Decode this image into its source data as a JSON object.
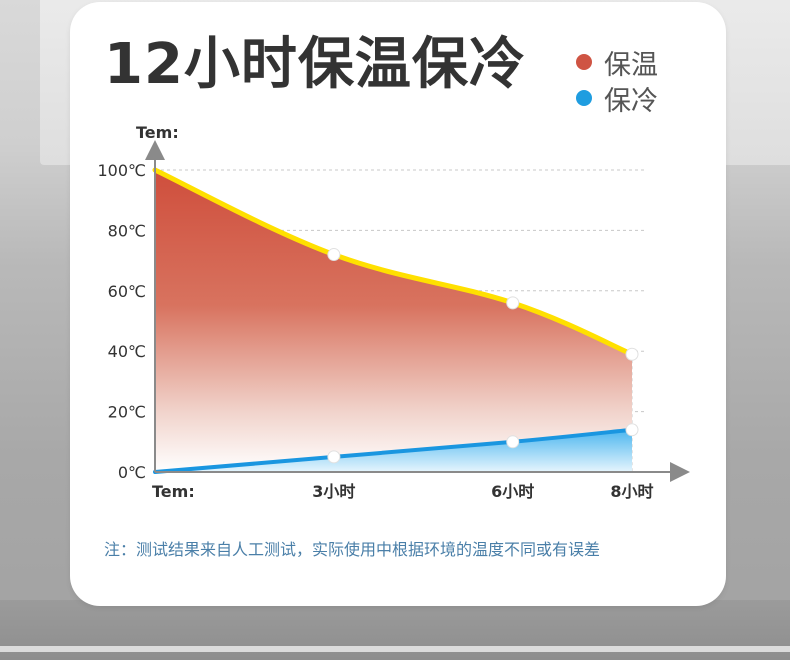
{
  "title": "12小时保温保冷",
  "legend": [
    {
      "label": "保温",
      "color": "#cf5443"
    },
    {
      "label": "保冷",
      "color": "#1f9de0"
    }
  ],
  "note": "注：测试结果来自人工测试，实际使用中根据环境的温度不同或有误差",
  "chart_data": {
    "type": "area",
    "ylabel": "Tem:",
    "x_origin_label": "Tem:",
    "categories": [
      "Tem:",
      "3小时",
      "6小时",
      "8小时"
    ],
    "x": [
      0,
      3,
      6,
      8
    ],
    "y_ticks": [
      "0℃",
      "20℃",
      "40℃",
      "60℃",
      "80℃",
      "100℃"
    ],
    "ylim": [
      0,
      100
    ],
    "grid": true,
    "series": [
      {
        "name": "保温",
        "values": [
          100,
          72,
          56,
          39
        ],
        "color": "#cf5443",
        "line_color": "#ffe000"
      },
      {
        "name": "保冷",
        "values": [
          0,
          5,
          10,
          14
        ],
        "color": "#1f9de0",
        "line_color": "#1a96e0"
      }
    ]
  }
}
